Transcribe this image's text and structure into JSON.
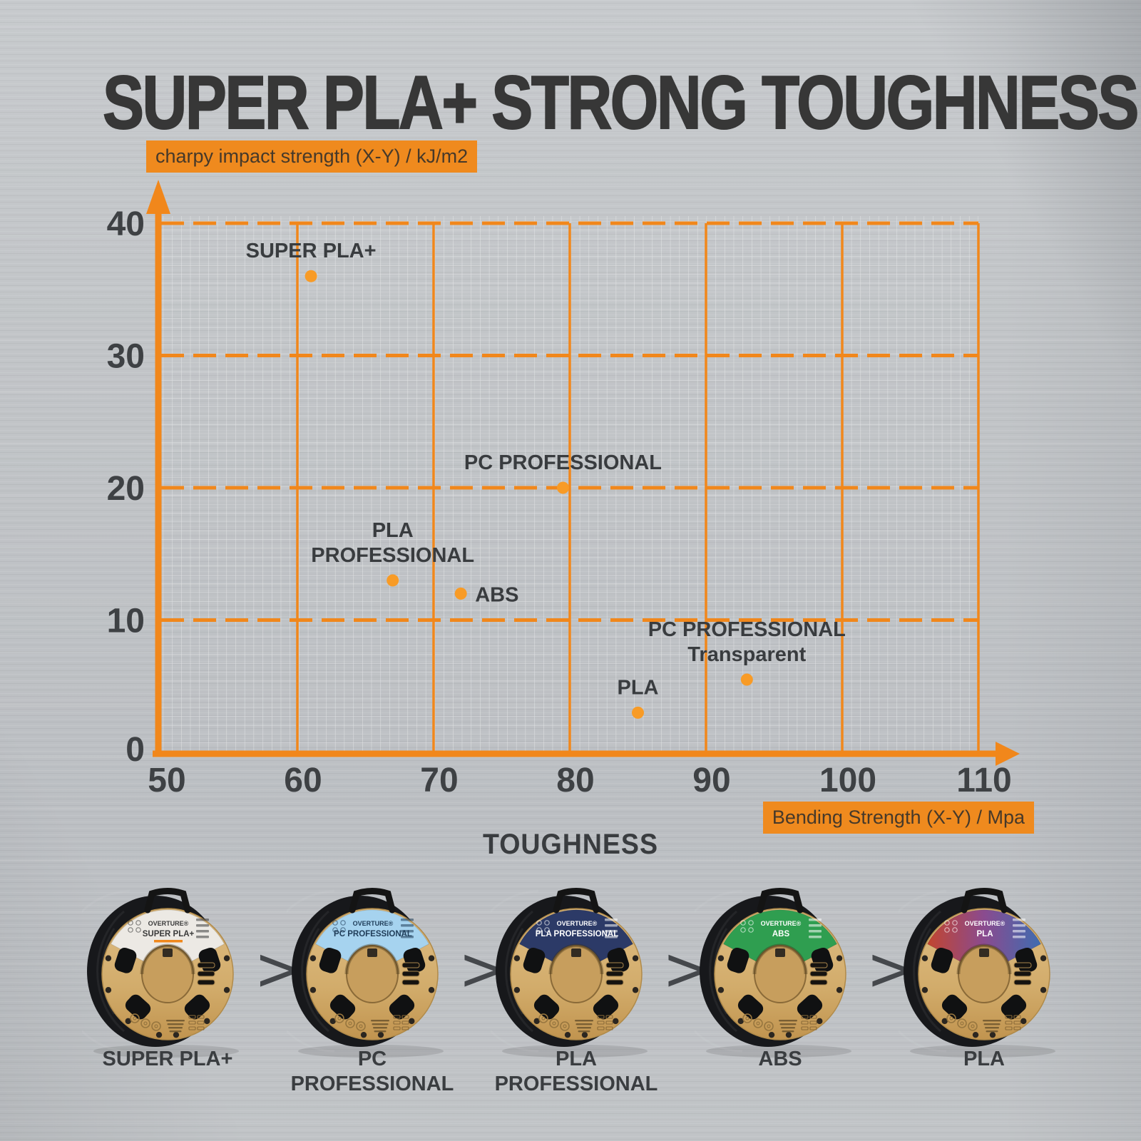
{
  "page": {
    "title": "SUPER PLA+ STRONG TOUGHNESS",
    "toughness_heading": "TOUGHNESS",
    "separator": ">",
    "brand": "OVERTURE®"
  },
  "colors": {
    "orange_accent": "#F0881C",
    "grid_orange": "#F1871B",
    "dot_orange": "#F89B26",
    "title_text": "#373737",
    "dark_text": "#3A3D40",
    "background": "#C2C5C8",
    "kraft_tan": "#D2AC6B",
    "filament_black": "#17181B"
  },
  "chart_data": {
    "type": "scatter",
    "title": "SUPER PLA+ STRONG TOUGHNESS",
    "xlabel": "Bending Strength (X-Y) / Mpa",
    "ylabel": "charpy impact strength (X-Y) / kJ/m2",
    "xlim": [
      50,
      113
    ],
    "ylim": [
      0,
      43
    ],
    "x_ticks": [
      50,
      60,
      70,
      80,
      90,
      100,
      110
    ],
    "y_ticks": [
      0,
      10,
      20,
      30,
      40
    ],
    "x_gridlines": "solid",
    "y_gridlines": "dashed",
    "grid": true,
    "legend": "none",
    "points": [
      {
        "label": "SUPER PLA+",
        "x": 61,
        "y": 36,
        "label_pos": "above"
      },
      {
        "label": "PC PROFESSIONAL",
        "x": 79.5,
        "y": 20,
        "label_pos": "above"
      },
      {
        "label": "PLA\nPROFESSIONAL",
        "x": 67,
        "y": 13,
        "label_pos": "above"
      },
      {
        "label": "ABS",
        "x": 72,
        "y": 12,
        "label_pos": "right"
      },
      {
        "label": "PC PROFESSIONAL\nTransparent",
        "x": 93,
        "y": 5.5,
        "label_pos": "above"
      },
      {
        "label": "PLA",
        "x": 85,
        "y": 3,
        "label_pos": "above"
      }
    ]
  },
  "spools": [
    {
      "name": "SUPER PLA+",
      "caption": "SUPER PLA+",
      "label_color": "#ECE9E4",
      "label_text_color": "#3A3A3A",
      "accent": "#F0881C"
    },
    {
      "name": "PC PROFESSIONAL",
      "caption": "PC\nPROFESSIONAL",
      "label_color": "#A6D3EF",
      "label_text_color": "#1F3C58"
    },
    {
      "name": "PLA PROFESSIONAL",
      "caption": "PLA\nPROFESSIONAL",
      "label_color": "#2C3A67",
      "label_text_color": "#FFFFFF"
    },
    {
      "name": "ABS",
      "caption": "ABS",
      "label_color": "#2F9E50",
      "label_text_color": "#FFFFFF"
    },
    {
      "name": "PLA",
      "caption": "PLA",
      "label_gradient": [
        "#C2452F",
        "#8A4B8F",
        "#3F6CB0"
      ],
      "label_text_color": "#FFFFFF"
    }
  ]
}
